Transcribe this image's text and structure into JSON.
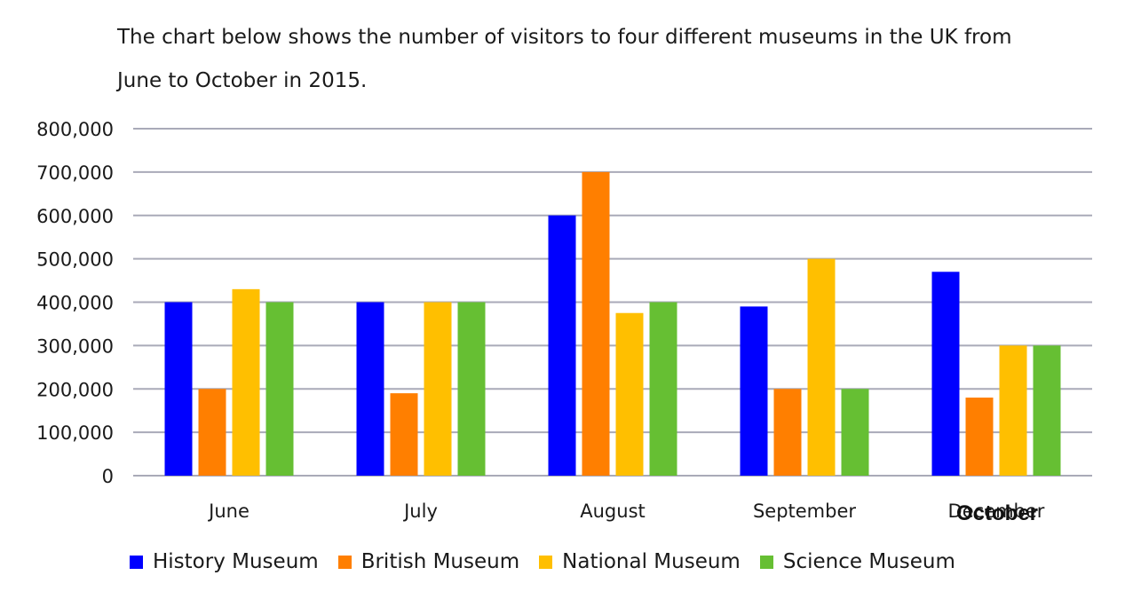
{
  "intro": {
    "line1": "The chart below shows the number of visitors to four different museums in the UK from",
    "line2": "June to October in 2015."
  },
  "chart_data": {
    "type": "bar",
    "categories": [
      "June",
      "July",
      "August",
      "September",
      "December"
    ],
    "category_overlay": {
      "index": 4,
      "text": "October"
    },
    "series": [
      {
        "name": "History Museum",
        "color": "#0000ff",
        "values": [
          400000,
          400000,
          600000,
          390000,
          470000
        ]
      },
      {
        "name": "British Museum",
        "color": "#ff7f00",
        "values": [
          200000,
          190000,
          700000,
          200000,
          180000
        ]
      },
      {
        "name": "National Museum",
        "color": "#ffbf00",
        "values": [
          430000,
          400000,
          375000,
          500000,
          300000
        ]
      },
      {
        "name": "Science Museum",
        "color": "#66bf33",
        "values": [
          400000,
          400000,
          400000,
          200000,
          300000
        ]
      }
    ],
    "yticks": [
      "0",
      "100,000",
      "200,000",
      "300,000",
      "400,000",
      "500,000",
      "600,000",
      "700,000",
      "800,000"
    ],
    "ylim": [
      0,
      800000
    ],
    "grid": true,
    "gridline_color": "#a9aab8",
    "legend_position": "bottom"
  }
}
